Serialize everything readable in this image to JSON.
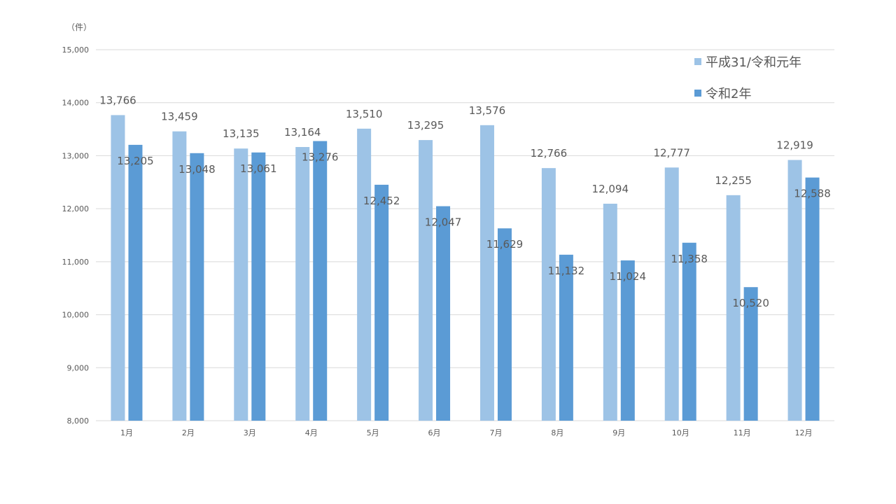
{
  "unit_label": "（件）",
  "legend": [
    {
      "label": "平成31/令和元年",
      "color": "#9DC3E6"
    },
    {
      "label": "令和2年",
      "color": "#5B9BD5"
    }
  ],
  "chart_data": {
    "type": "bar",
    "categories": [
      "1月",
      "2月",
      "3月",
      "4月",
      "5月",
      "6月",
      "7月",
      "8月",
      "9月",
      "10月",
      "11月",
      "12月"
    ],
    "series": [
      {
        "name": "平成31/令和元年",
        "color": "#9DC3E6",
        "values": [
          13766,
          13459,
          13135,
          13164,
          13510,
          13295,
          13576,
          12766,
          12094,
          12777,
          12255,
          12919
        ],
        "labels": [
          "13,766",
          "13,459",
          "13,135",
          "13,164",
          "13,510",
          "13,295",
          "13,576",
          "12,766",
          "12,094",
          "12,777",
          "12,255",
          "12,919"
        ]
      },
      {
        "name": "令和2年",
        "color": "#5B9BD5",
        "values": [
          13205,
          13048,
          13061,
          13276,
          12452,
          12047,
          11629,
          11132,
          11024,
          11358,
          10520,
          12588
        ],
        "labels": [
          "13,205",
          "13,048",
          "13,061",
          "13,276",
          "12,452",
          "12,047",
          "11,629",
          "11,132",
          "11,024",
          "11,358",
          "10,520",
          "12,588"
        ]
      }
    ],
    "yticks": [
      "8,000",
      "9,000",
      "10,000",
      "11,000",
      "12,000",
      "13,000",
      "14,000",
      "15,000"
    ],
    "ylim": [
      8000,
      15000
    ],
    "grid": true,
    "legend_position": "top-right"
  }
}
